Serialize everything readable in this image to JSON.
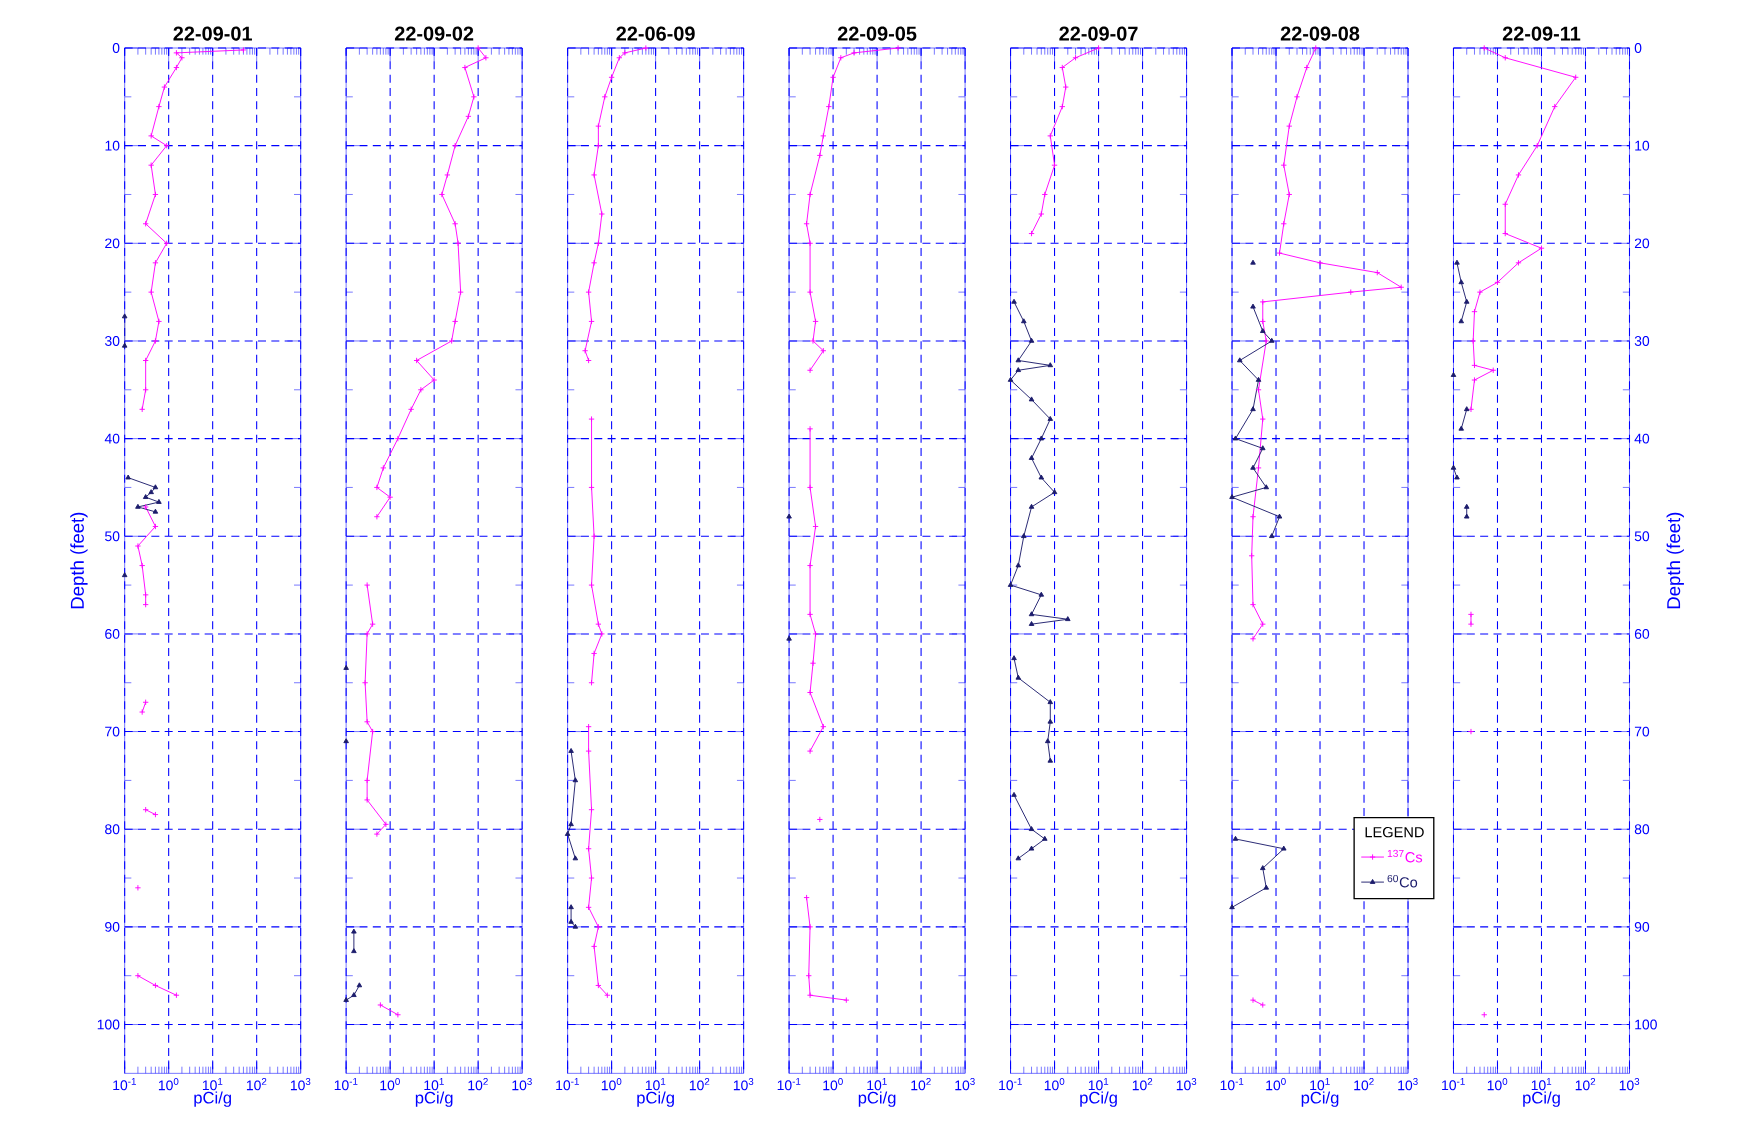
{
  "chart_data": [
    {
      "type": "line",
      "title": "22-09-01",
      "xlabel": "pCi/g",
      "ylabel": "Depth (feet)",
      "log": "x",
      "grid": true,
      "xlim": [
        0.1,
        1000
      ],
      "xticks": [
        {
          "value": 0.1,
          "label": "10$^{-1}$"
        },
        {
          "value": 1,
          "label": "10$^{0}$"
        },
        {
          "value": 10,
          "label": "10$^{1}$"
        },
        {
          "value": 100,
          "label": "10$^{2}$"
        },
        {
          "value": 1000,
          "label": "10$^{3}$"
        }
      ],
      "ylim": [
        105,
        0
      ],
      "yticks": [
        0,
        {
          "value": 5,
          "label": null
        },
        10,
        {
          "value": 15,
          "label": null
        },
        20,
        {
          "value": 25,
          "label": null
        },
        30,
        {
          "value": 35,
          "label": null
        },
        40,
        {
          "value": 45,
          "label": null
        },
        50,
        {
          "value": 55,
          "label": null
        },
        60,
        {
          "value": 65,
          "label": null
        },
        70,
        {
          "value": 75,
          "label": null
        },
        80,
        {
          "value": 85,
          "label": null
        },
        90,
        {
          "value": 95,
          "label": null
        },
        100
      ],
      "series": [
        {
          "color": "#ff00ff",
          "marker": "cross",
          "x": [
            50,
            1.5,
            2,
            1.5,
            0.8,
            0.6,
            0.4,
            0.9,
            0.4,
            0.5,
            0.3,
            0.9,
            0.5,
            0.4,
            0.6,
            0.5,
            0.3,
            0.3,
            0.25,
            null,
            0.3,
            0.5,
            0.2,
            0.25,
            0.3,
            0.3,
            null,
            0.3,
            0.25,
            null,
            0.3,
            0.5,
            null,
            0.2,
            null,
            0.2,
            0.5,
            1.5
          ],
          "values": [
            0.2,
            0.5,
            1,
            2,
            4,
            6,
            9,
            10,
            12,
            15,
            18,
            20,
            22,
            25,
            28,
            30,
            32,
            35,
            37,
            null,
            47,
            49,
            51,
            53,
            56,
            57,
            null,
            67,
            68,
            null,
            78,
            78.5,
            null,
            86,
            null,
            95,
            96,
            97
          ]
        },
        {
          "color": "#1c1c6c",
          "marker": "triangle",
          "x": [
            0.1,
            0.1,
            null,
            0.12,
            0.5,
            0.4,
            0.3,
            0.6,
            0.2,
            0.5,
            null,
            0.1
          ],
          "values": [
            27.5,
            30.5,
            null,
            44,
            45,
            45.5,
            46,
            46.5,
            47,
            47.5,
            null,
            54
          ]
        }
      ]
    },
    {
      "type": "line",
      "title": "22-09-02",
      "xlabel": "pCi/g",
      "log": "x",
      "grid": true,
      "tick_labels": "x",
      "xlim": [
        0.1,
        1000
      ],
      "xticks": [
        {
          "value": 0.1,
          "label": "10$^{-1}$"
        },
        {
          "value": 1,
          "label": "10$^{0}$"
        },
        {
          "value": 10,
          "label": "10$^{1}$"
        },
        {
          "value": 100,
          "label": "10$^{2}$"
        },
        {
          "value": 1000,
          "label": "10$^{3}$"
        }
      ],
      "ylim": [
        105,
        0
      ],
      "yticks": [
        0,
        {
          "value": 5,
          "label": null
        },
        10,
        {
          "value": 15,
          "label": null
        },
        20,
        {
          "value": 25,
          "label": null
        },
        30,
        {
          "value": 35,
          "label": null
        },
        40,
        {
          "value": 45,
          "label": null
        },
        50,
        {
          "value": 55,
          "label": null
        },
        60,
        {
          "value": 65,
          "label": null
        },
        70,
        {
          "value": 75,
          "label": null
        },
        80,
        {
          "value": 85,
          "label": null
        },
        90,
        {
          "value": 95,
          "label": null
        },
        100
      ],
      "series": [
        {
          "color": "#ff00ff",
          "marker": "cross",
          "x": [
            100,
            150,
            50,
            80,
            60,
            30,
            20,
            15,
            30,
            35,
            40,
            30,
            25,
            4,
            10,
            5,
            3,
            1.5,
            0.7,
            0.5,
            1,
            0.5,
            null,
            0.3,
            0.4,
            0.3,
            0.27,
            0.3,
            0.4,
            0.3,
            0.3,
            0.8,
            0.5,
            null,
            0.6,
            1.5
          ],
          "values": [
            0,
            1,
            2,
            5,
            7,
            10,
            13,
            15,
            18,
            20,
            25,
            28,
            30,
            32,
            34,
            35,
            37,
            40,
            43,
            45,
            46,
            48,
            null,
            55,
            59,
            60,
            65,
            69,
            70,
            75,
            77,
            79.5,
            80.5,
            null,
            98,
            99
          ]
        },
        {
          "color": "#1c1c6c",
          "marker": "triangle",
          "x": [
            0.1,
            null,
            0.1,
            null,
            0.15,
            0.15,
            null,
            0.2,
            0.15,
            0.1
          ],
          "values": [
            63.5,
            null,
            71,
            null,
            90.5,
            92.5,
            null,
            96,
            97,
            97.5
          ]
        }
      ]
    },
    {
      "type": "line",
      "title": "22-06-09",
      "xlabel": "pCi/g",
      "log": "x",
      "grid": true,
      "tick_labels": "x",
      "xlim": [
        0.1,
        1000
      ],
      "xticks": [
        {
          "value": 0.1,
          "label": "10$^{-1}$"
        },
        {
          "value": 1,
          "label": "10$^{0}$"
        },
        {
          "value": 10,
          "label": "10$^{1}$"
        },
        {
          "value": 100,
          "label": "10$^{2}$"
        },
        {
          "value": 1000,
          "label": "10$^{3}$"
        }
      ],
      "ylim": [
        105,
        0
      ],
      "yticks": [
        0,
        {
          "value": 5,
          "label": null
        },
        10,
        {
          "value": 15,
          "label": null
        },
        20,
        {
          "value": 25,
          "label": null
        },
        30,
        {
          "value": 35,
          "label": null
        },
        40,
        {
          "value": 45,
          "label": null
        },
        50,
        {
          "value": 55,
          "label": null
        },
        60,
        {
          "value": 65,
          "label": null
        },
        70,
        {
          "value": 75,
          "label": null
        },
        80,
        {
          "value": 85,
          "label": null
        },
        90,
        {
          "value": 95,
          "label": null
        },
        100
      ],
      "series": [
        {
          "color": "#ff00ff",
          "marker": "cross",
          "x": [
            6,
            2,
            1.5,
            1,
            0.7,
            0.5,
            0.5,
            0.4,
            0.6,
            0.5,
            0.4,
            0.3,
            0.35,
            0.25,
            0.3,
            null,
            0.35,
            0.35,
            0.4,
            0.35,
            0.5,
            0.6,
            0.4,
            0.35,
            null,
            0.3,
            0.3,
            0.35,
            0.3,
            0.35,
            0.3,
            0.5,
            0.4,
            0.5,
            0.8
          ],
          "values": [
            0,
            0.5,
            1,
            3,
            5,
            8,
            10,
            13,
            17,
            20,
            22,
            25,
            28,
            31,
            32,
            null,
            38,
            45,
            50,
            55,
            59,
            60,
            62,
            65,
            null,
            69.5,
            72,
            78,
            82,
            85,
            88,
            90,
            92,
            96,
            97
          ]
        },
        {
          "color": "#1c1c6c",
          "marker": "triangle",
          "x": [
            0.12,
            0.15,
            0.12,
            0.1,
            0.15,
            null,
            0.12,
            0.12,
            0.15
          ],
          "values": [
            72,
            75,
            79.5,
            80.5,
            83,
            null,
            88,
            89.5,
            90
          ]
        }
      ]
    },
    {
      "type": "line",
      "title": "22-09-05",
      "xlabel": "pCi/g",
      "log": "x",
      "grid": true,
      "tick_labels": "x",
      "xlim": [
        0.1,
        1000
      ],
      "xticks": [
        {
          "value": 0.1,
          "label": "10$^{-1}$"
        },
        {
          "value": 1,
          "label": "10$^{0}$"
        },
        {
          "value": 10,
          "label": "10$^{1}$"
        },
        {
          "value": 100,
          "label": "10$^{2}$"
        },
        {
          "value": 1000,
          "label": "10$^{3}$"
        }
      ],
      "ylim": [
        105,
        0
      ],
      "yticks": [
        0,
        {
          "value": 5,
          "label": null
        },
        10,
        {
          "value": 15,
          "label": null
        },
        20,
        {
          "value": 25,
          "label": null
        },
        30,
        {
          "value": 35,
          "label": null
        },
        40,
        {
          "value": 45,
          "label": null
        },
        50,
        {
          "value": 55,
          "label": null
        },
        60,
        {
          "value": 65,
          "label": null
        },
        70,
        {
          "value": 75,
          "label": null
        },
        80,
        {
          "value": 85,
          "label": null
        },
        90,
        {
          "value": 95,
          "label": null
        },
        100
      ],
      "series": [
        {
          "color": "#ff00ff",
          "marker": "cross",
          "x": [
            30,
            3,
            1.5,
            1,
            0.8,
            0.6,
            0.5,
            0.3,
            0.25,
            0.3,
            0.3,
            0.4,
            0.35,
            0.6,
            0.3,
            null,
            0.3,
            0.3,
            0.4,
            0.3,
            0.3,
            0.4,
            0.35,
            0.3,
            0.6,
            0.3,
            null,
            0.5,
            null,
            0.25,
            0.3,
            0.28,
            0.3,
            2
          ],
          "values": [
            0,
            0.5,
            1,
            3,
            6,
            9,
            11,
            15,
            18,
            20,
            25,
            28,
            30,
            31,
            33,
            null,
            39,
            45,
            49,
            53,
            58,
            60,
            63,
            66,
            69.5,
            72,
            null,
            79,
            null,
            87,
            90,
            95,
            97,
            97.5
          ]
        },
        {
          "type": "scatter",
          "color": "#1c1c6c",
          "marker": "triangle",
          "x": [
            0.1,
            null,
            0.1
          ],
          "values": [
            48,
            null,
            60.5
          ]
        }
      ]
    },
    {
      "type": "line",
      "title": "22-09-07",
      "xlabel": "pCi/g",
      "log": "x",
      "grid": true,
      "tick_labels": "x",
      "xlim": [
        0.1,
        1000
      ],
      "xticks": [
        {
          "value": 0.1,
          "label": "10$^{-1}$"
        },
        {
          "value": 1,
          "label": "10$^{0}$"
        },
        {
          "value": 10,
          "label": "10$^{1}$"
        },
        {
          "value": 100,
          "label": "10$^{2}$"
        },
        {
          "value": 1000,
          "label": "10$^{3}$"
        }
      ],
      "ylim": [
        105,
        0
      ],
      "yticks": [
        0,
        {
          "value": 5,
          "label": null
        },
        10,
        {
          "value": 15,
          "label": null
        },
        20,
        {
          "value": 25,
          "label": null
        },
        30,
        {
          "value": 35,
          "label": null
        },
        40,
        {
          "value": 45,
          "label": null
        },
        50,
        {
          "value": 55,
          "label": null
        },
        60,
        {
          "value": 65,
          "label": null
        },
        70,
        {
          "value": 75,
          "label": null
        },
        80,
        {
          "value": 85,
          "label": null
        },
        90,
        {
          "value": 95,
          "label": null
        },
        100
      ],
      "series": [
        {
          "color": "#ff00ff",
          "marker": "cross",
          "x": [
            10,
            3,
            1.5,
            1.8,
            1.5,
            0.8,
            1,
            0.6,
            0.5,
            0.3
          ],
          "values": [
            0,
            1,
            2,
            4,
            6,
            9,
            12,
            15,
            17,
            19
          ]
        },
        {
          "color": "#1c1c6c",
          "marker": "triangle",
          "x": [
            0.12,
            0.2,
            0.3,
            0.15,
            0.8,
            0.15,
            0.1,
            0.3,
            0.8,
            0.5,
            0.3,
            0.5,
            1,
            0.3,
            0.2,
            0.15,
            0.1,
            0.5,
            0.3,
            2,
            0.3,
            null,
            0.12,
            0.15,
            0.8,
            0.8,
            0.7,
            0.8,
            null,
            0.12,
            0.3,
            0.6,
            0.3,
            0.15
          ],
          "values": [
            26,
            28,
            30,
            32,
            32.5,
            33,
            34,
            36,
            38,
            40,
            42,
            44,
            45.5,
            47,
            50,
            53,
            55,
            56,
            58,
            58.5,
            59,
            null,
            62.5,
            64.5,
            67,
            69,
            71,
            73,
            null,
            76.5,
            80,
            81,
            82,
            83
          ]
        }
      ]
    },
    {
      "type": "line",
      "title": "22-09-08",
      "xlabel": "pCi/g",
      "log": "x",
      "grid": true,
      "tick_labels": "x",
      "legend": "bottom right",
      "legend_title": "LEGEND",
      "xlim": [
        0.1,
        1000
      ],
      "xticks": [
        {
          "value": 0.1,
          "label": "10$^{-1}$"
        },
        {
          "value": 1,
          "label": "10$^{0}$"
        },
        {
          "value": 10,
          "label": "10$^{1}$"
        },
        {
          "value": 100,
          "label": "10$^{2}$"
        },
        {
          "value": 1000,
          "label": "10$^{3}$"
        }
      ],
      "ylim": [
        105,
        0
      ],
      "yticks": [
        0,
        {
          "value": 5,
          "label": null
        },
        10,
        {
          "value": 15,
          "label": null
        },
        20,
        {
          "value": 25,
          "label": null
        },
        30,
        {
          "value": 35,
          "label": null
        },
        40,
        {
          "value": 45,
          "label": null
        },
        50,
        {
          "value": 55,
          "label": null
        },
        60,
        {
          "value": 65,
          "label": null
        },
        70,
        {
          "value": 75,
          "label": null
        },
        80,
        {
          "value": 85,
          "label": null
        },
        90,
        {
          "value": 95,
          "label": null
        },
        100
      ],
      "series": [
        {
          "name": "$^{137}$Cs",
          "color": "#ff00ff",
          "marker": "cross",
          "x": [
            8,
            5,
            3,
            2,
            1.5,
            2,
            1.5,
            1.2,
            10,
            200,
            700,
            50,
            0.5,
            0.5,
            0.6,
            0.4,
            0.5,
            0.4,
            0.3,
            0.28,
            0.3,
            0.5,
            0.3,
            null,
            0.3,
            0.5
          ],
          "values": [
            0,
            2,
            5,
            8,
            12,
            15,
            18,
            21,
            22,
            23,
            24.5,
            25,
            26,
            28,
            30,
            35,
            38,
            43,
            48,
            52,
            57,
            59,
            60.5,
            null,
            97.5,
            98
          ]
        },
        {
          "name": "$^{60}$Co",
          "color": "#1c1c6c",
          "marker": "triangle",
          "x": [
            0.3,
            null,
            0.3,
            0.5,
            0.8,
            0.15,
            0.4,
            0.3,
            0.12,
            0.5,
            0.3,
            0.6,
            0.1,
            1.2,
            0.8,
            null,
            0.12,
            1.5,
            0.5,
            0.6,
            0.1
          ],
          "values": [
            22,
            null,
            26.5,
            29,
            30,
            32,
            34,
            37,
            40,
            41,
            43,
            45,
            46,
            48,
            50,
            null,
            81,
            82,
            84,
            86,
            88
          ]
        }
      ]
    },
    {
      "type": "line",
      "title": "22-09-11",
      "xlabel": "pCi/g",
      "y2label": "Depth (feet)",
      "log": "x",
      "grid": true,
      "xlim": [
        0.1,
        1000
      ],
      "xticks": [
        {
          "value": 0.1,
          "label": "10$^{-1}$"
        },
        {
          "value": 1,
          "label": "10$^{0}$"
        },
        {
          "value": 10,
          "label": "10$^{1}$"
        },
        {
          "value": 100,
          "label": "10$^{2}$"
        },
        {
          "value": 1000,
          "label": "10$^{3}$"
        }
      ],
      "y2lim": [
        105,
        0
      ],
      "y2ticks": [
        0,
        {
          "value": 5,
          "label": null
        },
        10,
        {
          "value": 15,
          "label": null
        },
        20,
        {
          "value": 25,
          "label": null
        },
        30,
        {
          "value": 35,
          "label": null
        },
        40,
        {
          "value": 45,
          "label": null
        },
        50,
        {
          "value": 55,
          "label": null
        },
        60,
        {
          "value": 65,
          "label": null
        },
        70,
        {
          "value": 75,
          "label": null
        },
        80,
        {
          "value": 85,
          "label": null
        },
        90,
        {
          "value": 95,
          "label": null
        },
        100
      ],
      "series": [
        {
          "axis": "y2",
          "color": "#ff00ff",
          "marker": "cross",
          "x": [
            0.5,
            1.5,
            60,
            20,
            8,
            3,
            1.5,
            1.5,
            10,
            3,
            1,
            0.4,
            0.3,
            0.28,
            0.3,
            0.8,
            0.3,
            0.25,
            null,
            0.25,
            0.25,
            null,
            0.25,
            null,
            0.5
          ],
          "values": [
            0,
            1,
            3,
            6,
            10,
            13,
            16,
            19,
            20.5,
            22,
            24,
            25,
            27,
            30,
            32.5,
            33,
            34,
            37,
            null,
            58,
            59,
            null,
            70,
            null,
            99
          ]
        },
        {
          "axis": "y2",
          "color": "#1c1c6c",
          "marker": "triangle",
          "x": [
            0.12,
            0.15,
            0.2,
            0.15,
            null,
            0.1,
            null,
            0.2,
            0.15,
            null,
            0.1,
            0.12,
            null,
            0.2,
            0.2
          ],
          "values": [
            22,
            24,
            26,
            28,
            null,
            33.5,
            null,
            37,
            39,
            null,
            43,
            44,
            null,
            47,
            48
          ]
        }
      ]
    }
  ]
}
